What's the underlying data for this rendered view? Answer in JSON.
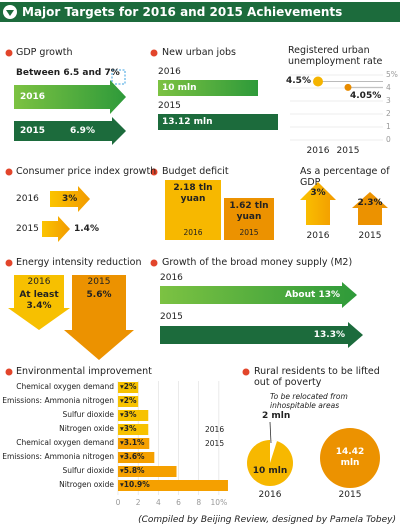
{
  "title": "Major Targets for 2016 and 2015 Achievements",
  "credit": "(Compiled by Beijing Review, designed by Pamela Tobey)",
  "panels": {
    "gdp": {
      "title": "GDP growth",
      "years": [
        "2016",
        "2015"
      ],
      "labels": [
        "Between 6.5 and 7%",
        "6.9%"
      ]
    },
    "jobs": {
      "title": "New urban jobs",
      "years": [
        "2016",
        "2015"
      ],
      "labels": [
        "10 mln",
        "13.12 mln"
      ]
    },
    "cpi": {
      "title": "Consumer price index growth",
      "years": [
        "2016",
        "2015"
      ],
      "labels": [
        "3%",
        "1.4%"
      ]
    },
    "deficit": {
      "title": "Budget deficit",
      "years": [
        "2016",
        "2015"
      ],
      "labels": [
        "2.18 tln yuan",
        "1.62 tln yuan"
      ]
    },
    "gdp_share": {
      "title": "As a percentage of GDP",
      "years": [
        "2016",
        "2015"
      ],
      "labels": [
        "3%",
        "2.3%"
      ]
    },
    "energy": {
      "title": "Energy intensity reduction",
      "years": [
        "2016",
        "2015"
      ],
      "labels": [
        "At least 3.4%",
        "5.6%"
      ]
    },
    "m2": {
      "title": "Growth of the broad money supply (M2)",
      "years": [
        "2016",
        "2015"
      ],
      "labels": [
        "About 13%",
        "13.3%"
      ]
    },
    "rural": {
      "title": "Rural residents to be lifted out of poverty",
      "note": "To be relocated from inhospitable areas",
      "relocated": "2 mln",
      "years": [
        "2016",
        "2015"
      ],
      "labels": [
        "10 mln",
        "14.42 mln"
      ]
    }
  },
  "chart_data": [
    {
      "type": "dot",
      "title": "Registered urban unemployment rate",
      "categories": [
        "2016",
        "2015"
      ],
      "values": [
        4.5,
        4.05
      ],
      "value_labels": [
        "4.5%",
        "4.05%"
      ],
      "colors": [
        "#f5b400",
        "#e88c00"
      ],
      "ylim": [
        0,
        5
      ],
      "yticks": [
        0,
        1,
        2,
        3,
        4,
        {
          "value": 5,
          "label": "5%"
        }
      ]
    },
    {
      "type": "hbar",
      "title": "Environmental improvement",
      "categories": [
        "Chemical oxygen demand",
        "Emissions: Ammonia nitrogen",
        "Sulfur dioxide",
        "Nitrogen oxide",
        "Chemical oxygen demand",
        "Emissions: Ammonia nitrogen",
        "Sulfur dioxide",
        "Nitrogen oxide"
      ],
      "values": [
        2,
        2,
        3,
        3,
        3.1,
        3.6,
        5.8,
        10.9
      ],
      "value_labels": [
        "▾2%",
        "▾2%",
        "▾3%",
        "▾3%",
        "▾3.1%",
        "▾3.6%",
        "▾5.8%",
        "▾10.9%"
      ],
      "colors": [
        "#f7c200",
        "#f5a000"
      ],
      "groups": [
        "2016",
        "2015"
      ],
      "xlim": [
        0,
        11.3
      ],
      "xticks": [
        0,
        2,
        4,
        6,
        8,
        {
          "value": 10,
          "label": "10%"
        }
      ]
    }
  ]
}
